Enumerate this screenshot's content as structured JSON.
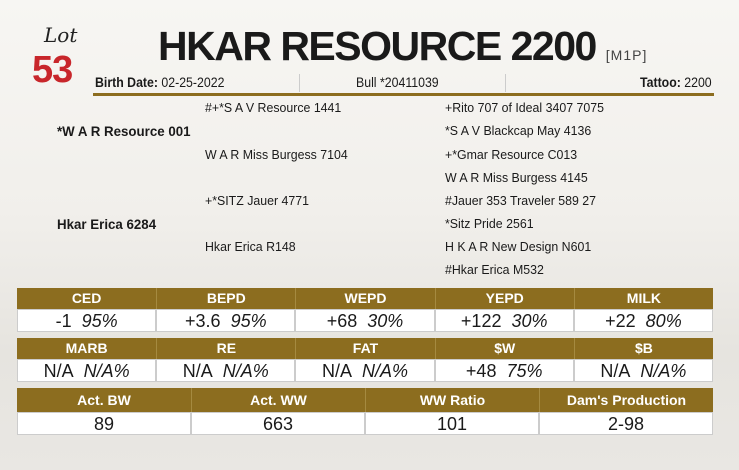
{
  "lot_label": "Lot",
  "lot_number": "53",
  "title": "HKAR RESOURCE 2200",
  "registry": "[M1P]",
  "birth_date_label": "Birth Date:",
  "birth_date": "02-25-2022",
  "registration": "Bull *20411039",
  "tattoo_label": "Tattoo:",
  "tattoo": "2200",
  "pedigree": {
    "sire": "*W A R Resource 001",
    "sire_sire": "#+*S A V Resource 1441",
    "sire_dam": "W A R Miss Burgess 7104",
    "dam": "Hkar Erica 6284",
    "dam_sire": "+*SITZ Jauer 4771",
    "dam_dam": "Hkar Erica R148",
    "gp": [
      "+Rito 707 of Ideal 3407 7075",
      "*S A V Blackcap May 4136",
      "+*Gmar Resource C013",
      "W A R Miss Burgess 4145",
      "#Jauer 353 Traveler 589 27",
      "*Sitz Pride 2561",
      "H K A R New Design N601",
      "#Hkar Erica M532"
    ]
  },
  "epd1": [
    {
      "h": "CED",
      "v": "-1",
      "a": "95%"
    },
    {
      "h": "BEPD",
      "v": "+3.6",
      "a": "95%"
    },
    {
      "h": "WEPD",
      "v": "+68",
      "a": "30%"
    },
    {
      "h": "YEPD",
      "v": "+122",
      "a": "30%"
    },
    {
      "h": "MILK",
      "v": "+22",
      "a": "80%"
    }
  ],
  "epd2": [
    {
      "h": "MARB",
      "v": "N/A",
      "a": "N/A%"
    },
    {
      "h": "RE",
      "v": "N/A",
      "a": "N/A%"
    },
    {
      "h": "FAT",
      "v": "N/A",
      "a": "N/A%"
    },
    {
      "h": "$W",
      "v": "+48",
      "a": "75%"
    },
    {
      "h": "$B",
      "v": "N/A",
      "a": "N/A%"
    }
  ],
  "perf": [
    {
      "h": "Act. BW",
      "v": "89"
    },
    {
      "h": "Act. WW",
      "v": "663"
    },
    {
      "h": "WW Ratio",
      "v": "101"
    },
    {
      "h": "Dam's Production",
      "v": "2-98"
    }
  ]
}
